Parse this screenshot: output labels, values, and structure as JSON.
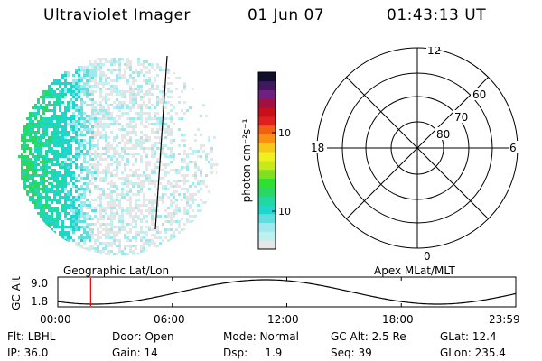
{
  "header": {
    "instrument": "Ultraviolet Imager",
    "date": "01 Jun 07",
    "time": "01:43:13 UT"
  },
  "colorbar": {
    "unit_label": "photon cm⁻²s⁻¹",
    "ticks": [
      "100",
      "10"
    ],
    "colors": [
      "#e6e6e6",
      "#bff0f0",
      "#9ee8ee",
      "#60dede",
      "#1ed6cc",
      "#20d8a0",
      "#28d860",
      "#30e030",
      "#80e020",
      "#c8e81a",
      "#f0f020",
      "#f8c818",
      "#f89010",
      "#f06010",
      "#e02020",
      "#c8101a",
      "#a01040",
      "#702080",
      "#401860",
      "#10102e"
    ]
  },
  "image_panel": {
    "projection_label": "Geographic Lat/Lon"
  },
  "polar_panel": {
    "label": "Apex MLat/MLT",
    "mlt_labels": {
      "top": "12",
      "left": "18",
      "right": "6",
      "bottom": "0"
    },
    "lat_labels": [
      "60",
      "70",
      "80"
    ]
  },
  "timeline": {
    "ylabel": "GC Alt",
    "ytick_top": "9.0",
    "ytick_bottom": "1.8",
    "xticks": [
      "00:00",
      "06:00",
      "12:00",
      "18:00",
      "23:59"
    ],
    "marker_time_hours": 1.72
  },
  "info": {
    "flt": "Flt: LBHL",
    "ip": "IP: 36.0",
    "door": "Door: Open",
    "gain": "Gain: 14",
    "mode": "Mode: Normal",
    "dsp": "Dsp:     1.9",
    "gcalt": "GC Alt: 2.5 Re",
    "seq": "Seq: 39",
    "glat": "GLat: 12.4",
    "glon": "GLon: 235.4"
  }
}
